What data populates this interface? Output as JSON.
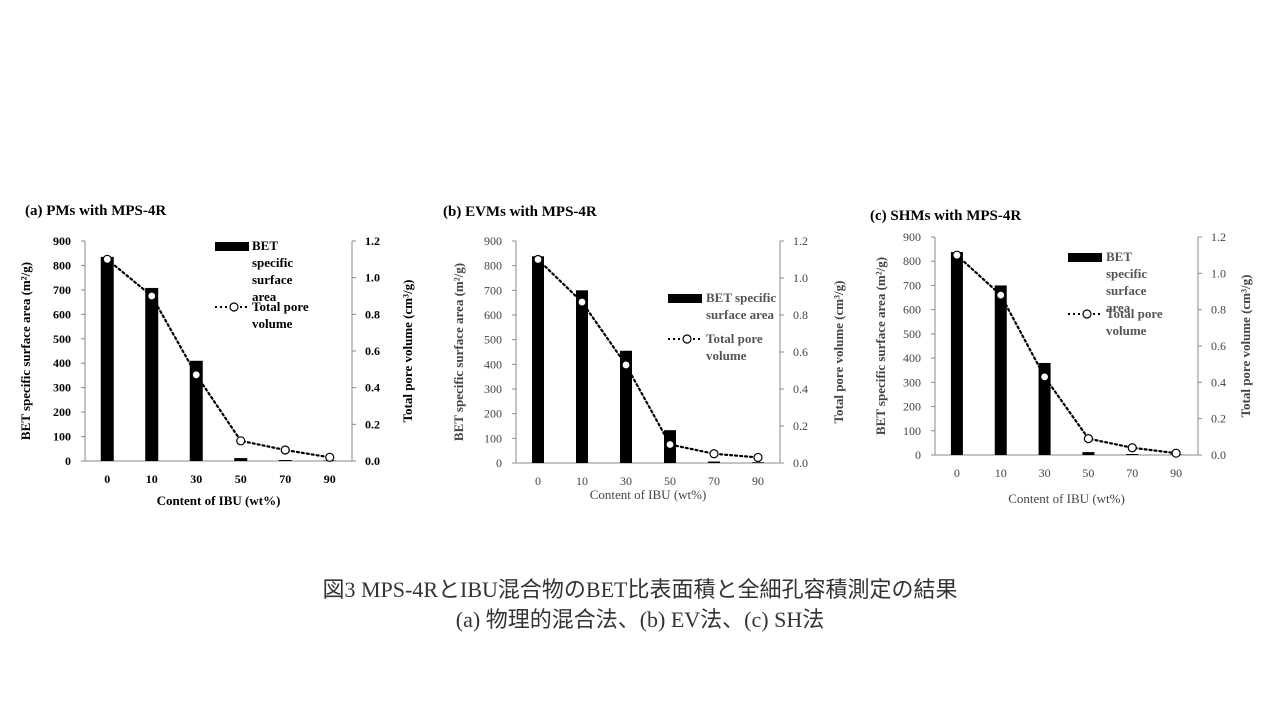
{
  "chart_data": [
    {
      "type": "bar+line",
      "title": "(a) PMs with MPS-4R",
      "categories": [
        "0",
        "10",
        "30",
        "50",
        "70",
        "90"
      ],
      "xlabel": "Content of IBU (wt%)",
      "ylabel_left": "BET specific surface area (m²/g)",
      "ylabel_right": "Total pore volume (cm³/g)",
      "ylim_left": [
        0,
        900
      ],
      "yticks_left": [
        "0",
        "100",
        "200",
        "300",
        "400",
        "500",
        "600",
        "700",
        "800",
        "900"
      ],
      "ylim_right": [
        0,
        1.2
      ],
      "yticks_right": [
        "0.0",
        "0.2",
        "0.4",
        "0.6",
        "0.8",
        "1.0",
        "1.2"
      ],
      "series": [
        {
          "name": "BET specific surface area",
          "kind": "bar",
          "axis": "left",
          "values": [
            835,
            708,
            410,
            12,
            4,
            2
          ]
        },
        {
          "name": "Total pore volume",
          "kind": "line",
          "axis": "right",
          "values": [
            1.1,
            0.9,
            0.47,
            0.11,
            0.06,
            0.02
          ]
        }
      ],
      "legend": [
        "BET specific surface area",
        "Total pore volume"
      ],
      "legend_position": "top-right"
    },
    {
      "type": "bar+line",
      "title": "(b) EVMs with MPS-4R",
      "categories": [
        "0",
        "10",
        "30",
        "50",
        "70",
        "90"
      ],
      "xlabel": "Content of IBU (wt%)",
      "ylabel_left": "BET specific surface area (m²/g)",
      "ylabel_right": "Total pore volume (cm³/g)",
      "ylim_left": [
        0,
        900
      ],
      "yticks_left": [
        "0",
        "100",
        "200",
        "300",
        "400",
        "500",
        "600",
        "700",
        "800",
        "900"
      ],
      "ylim_right": [
        0,
        1.2
      ],
      "yticks_right": [
        "0.0",
        "0.2",
        "0.4",
        "0.6",
        "0.8",
        "1.0",
        "1.2"
      ],
      "series": [
        {
          "name": "BET specific surface area",
          "kind": "bar",
          "axis": "left",
          "values": [
            838,
            700,
            455,
            133,
            6,
            3
          ]
        },
        {
          "name": "Total pore volume",
          "kind": "line",
          "axis": "right",
          "values": [
            1.1,
            0.87,
            0.53,
            0.1,
            0.05,
            0.03
          ]
        }
      ],
      "legend": [
        "BET specific surface area",
        "Total pore volume"
      ],
      "legend_position": "right"
    },
    {
      "type": "bar+line",
      "title": "(c) SHMs with MPS-4R",
      "categories": [
        "0",
        "10",
        "30",
        "50",
        "70",
        "90"
      ],
      "xlabel": "Content of IBU (wt%)",
      "ylabel_left": "BET specific surface area (m²/g)",
      "ylabel_right": "Total pore volume (cm³/g)",
      "ylim_left": [
        0,
        900
      ],
      "yticks_left": [
        "0",
        "100",
        "200",
        "300",
        "400",
        "500",
        "600",
        "700",
        "800",
        "900"
      ],
      "ylim_right": [
        0,
        1.2
      ],
      "yticks_right": [
        "0.0",
        "0.2",
        "0.4",
        "0.6",
        "0.8",
        "1.0",
        "1.2"
      ],
      "series": [
        {
          "name": "BET specific surface area",
          "kind": "bar",
          "axis": "left",
          "values": [
            838,
            700,
            380,
            12,
            4,
            2
          ]
        },
        {
          "name": "Total pore volume",
          "kind": "line",
          "axis": "right",
          "values": [
            1.1,
            0.88,
            0.43,
            0.09,
            0.04,
            0.01
          ]
        }
      ],
      "legend": [
        "BET specific surface area",
        "Total pore volume"
      ],
      "legend_position": "top-right"
    }
  ],
  "caption": {
    "line1": "図3 MPS-4RとIBU混合物のBET比表面積と全細孔容積測定の結果",
    "line2": "(a) 物理的混合法、(b) EV法、(c) SH法"
  }
}
